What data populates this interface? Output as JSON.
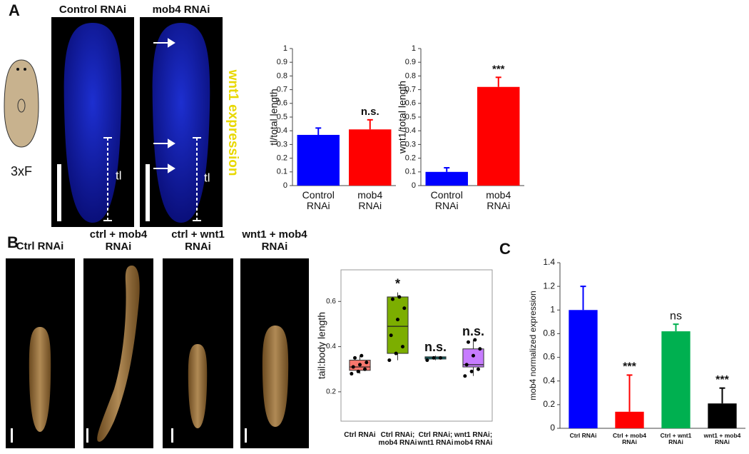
{
  "figure": {
    "panel_a": "A",
    "panel_b": "B",
    "panel_c": "C",
    "a_headers": [
      "Control RNAi",
      "mob4 RNAi"
    ],
    "stain": "wnt1 expression",
    "cartoon_label": "3xF",
    "tl_labels": [
      "tl",
      "tl"
    ],
    "b_headers": [
      "Ctrl RNAi",
      "ctrl + mob4 RNAi",
      "ctrl + wnt1 RNAi",
      "wnt1 + mob4 RNAi"
    ]
  },
  "chart_data": [
    {
      "type": "bar",
      "ylabel": "tl/total length",
      "categories": [
        "Control RNAi",
        "mob4 RNAi"
      ],
      "values": [
        0.37,
        0.41
      ],
      "errors": [
        0.05,
        0.07
      ],
      "colors": [
        "#0000ff",
        "#ff0000"
      ],
      "annotations": [
        null,
        "n.s."
      ],
      "ylim": [
        0,
        1
      ],
      "yticks": [
        0,
        0.1,
        0.2,
        0.3,
        0.4,
        0.5,
        0.6,
        0.7,
        0.8,
        0.9,
        1
      ],
      "grid": false
    },
    {
      "type": "bar",
      "ylabel": "wnt1/total length",
      "categories": [
        "Control RNAi",
        "mob4 RNAi"
      ],
      "values": [
        0.1,
        0.72
      ],
      "errors": [
        0.03,
        0.07
      ],
      "colors": [
        "#0000ff",
        "#ff0000"
      ],
      "annotations": [
        null,
        "***"
      ],
      "ylim": [
        0,
        1
      ],
      "yticks": [
        0,
        0.1,
        0.2,
        0.3,
        0.4,
        0.5,
        0.6,
        0.7,
        0.8,
        0.9,
        1
      ],
      "grid": false
    },
    {
      "type": "box",
      "ylabel": "tail:body length",
      "categories": [
        "Ctrl RNAi",
        "Ctrl RNAi; mob4 RNAi",
        "Ctrl RNAi; wnt1 RNAi",
        "wnt1 RNAi; mob4 RNAi"
      ],
      "whisker_low": [
        0.28,
        0.34,
        0.34,
        0.27
      ],
      "q1": [
        0.295,
        0.37,
        0.345,
        0.31
      ],
      "median": [
        0.31,
        0.49,
        0.35,
        0.32
      ],
      "q3": [
        0.34,
        0.62,
        0.355,
        0.39
      ],
      "whisker_high": [
        0.36,
        0.64,
        0.36,
        0.43
      ],
      "points": [
        [
          0.28,
          0.29,
          0.3,
          0.31,
          0.32,
          0.33,
          0.35,
          0.36
        ],
        [
          0.34,
          0.37,
          0.4,
          0.45,
          0.52,
          0.57,
          0.61,
          0.62
        ],
        [
          0.34,
          0.35,
          0.35
        ],
        [
          0.27,
          0.29,
          0.3,
          0.32,
          0.36,
          0.39,
          0.42,
          0.43
        ]
      ],
      "colors": [
        "#f8766d",
        "#7cae00",
        "#00bfc4",
        "#c77cff"
      ],
      "annotations": [
        null,
        "*",
        "n.s.",
        "n.s."
      ],
      "ylim": [
        0.07,
        0.74
      ],
      "yticks": [
        {
          "value": 0.2,
          "label": "0.2"
        },
        {
          "value": 0.4,
          "label": "0.4"
        },
        {
          "value": 0.6,
          "label": "0.6"
        }
      ],
      "grid": false
    },
    {
      "type": "bar",
      "ylabel": "mob4 normalized expression",
      "categories": [
        "Ctrl RNAi",
        "Ctrl + mob4 RNAi",
        "Ctrl + wnt1 RNAi",
        "wnt1 + mob4 RNAi"
      ],
      "values": [
        1.0,
        0.14,
        0.82,
        0.21
      ],
      "errors": [
        0.2,
        0.31,
        0.06,
        0.13
      ],
      "colors": [
        "#0000ff",
        "#ff0000",
        "#00b050",
        "#000000"
      ],
      "annotations": [
        null,
        "***",
        "ns",
        "***"
      ],
      "ylim": [
        0,
        1.4
      ],
      "yticks": [
        0,
        0.2,
        0.4,
        0.6,
        0.8,
        1,
        1.2,
        1.4
      ],
      "grid": false
    }
  ]
}
